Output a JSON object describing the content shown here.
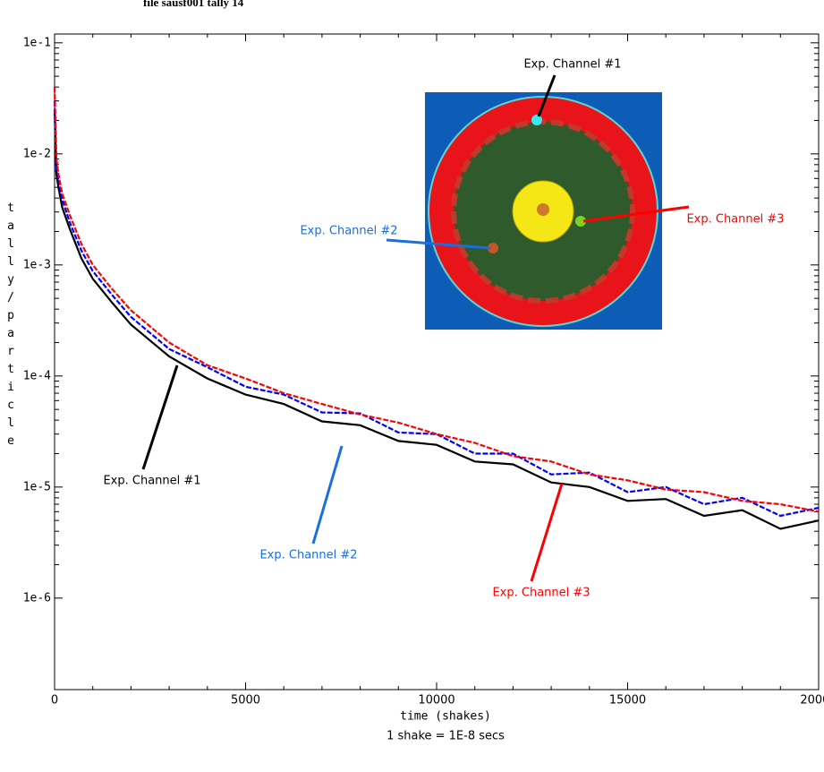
{
  "chart_data": {
    "type": "line",
    "title": "file sausf001 tally 14",
    "xlabel": "time (shakes)",
    "xlabel_note": "1 shake = 1E-8 secs",
    "ylabel": "tally/particle",
    "log_y": true,
    "xlim": [
      0,
      20000
    ],
    "ylim": [
      1.5e-07,
      0.12
    ],
    "xticks": [
      0,
      5000,
      10000,
      15000,
      20000
    ],
    "yticks": [
      {
        "value": 1e-06,
        "label": "1e-6"
      },
      {
        "value": 1e-05,
        "label": "1e-5"
      },
      {
        "value": 0.0001,
        "label": "1e-4"
      },
      {
        "value": 0.001,
        "label": "1e-3"
      },
      {
        "value": 0.01,
        "label": "1e-2"
      },
      {
        "value": 0.1,
        "label": "1e-1"
      }
    ],
    "x": [
      0,
      50,
      100,
      200,
      400,
      700,
      1000,
      1500,
      2000,
      3000,
      4000,
      5000,
      6000,
      7000,
      8000,
      9000,
      10000,
      11000,
      12000,
      13000,
      14000,
      15000,
      16000,
      17000,
      18000,
      19000,
      20000
    ],
    "series": [
      {
        "name": "Exp. Channel #1",
        "color": "#000000",
        "dash": false,
        "values": [
          0.025,
          0.0065,
          0.005,
          0.0033,
          0.0021,
          0.00115,
          0.00075,
          0.00046,
          0.00029,
          0.00015,
          9.5e-05,
          6.8e-05,
          5.6e-05,
          3.9e-05,
          3.6e-05,
          2.6e-05,
          2.4e-05,
          1.7e-05,
          1.6e-05,
          1.1e-05,
          1e-05,
          7.5e-06,
          7.8e-06,
          5.5e-06,
          6.2e-06,
          4.2e-06,
          5e-06
        ]
      },
      {
        "name": "Exp. Channel #2",
        "color": "#0000ff",
        "dash": true,
        "values": [
          0.03,
          0.0075,
          0.0058,
          0.0039,
          0.0024,
          0.00135,
          0.00088,
          0.00054,
          0.00034,
          0.000175,
          0.00012,
          8e-05,
          6.8e-05,
          4.7e-05,
          4.6e-05,
          3.1e-05,
          3e-05,
          2e-05,
          2e-05,
          1.3e-05,
          1.35e-05,
          9e-06,
          1e-05,
          7e-06,
          8e-06,
          5.5e-06,
          6.5e-06
        ]
      },
      {
        "name": "Exp. Channel #3",
        "color": "#ff0000",
        "dash": true,
        "values": [
          0.04,
          0.009,
          0.0066,
          0.0044,
          0.0028,
          0.00155,
          0.001,
          0.00061,
          0.00039,
          0.0002,
          0.000125,
          9.5e-05,
          7e-05,
          5.6e-05,
          4.5e-05,
          3.8e-05,
          3e-05,
          2.5e-05,
          1.9e-05,
          1.7e-05,
          1.3e-05,
          1.15e-05,
          9.5e-06,
          9e-06,
          7.5e-06,
          7e-06,
          6e-06
        ]
      }
    ],
    "annotations": [
      {
        "text": "Exp. Channel #1",
        "color": "#000000"
      },
      {
        "text": "Exp. Channel #2",
        "color": "#1a6ee0"
      },
      {
        "text": "Exp. Channel #3",
        "color": "#ff0000"
      },
      {
        "text": "Exp. Channel #1",
        "color": "#000000"
      },
      {
        "text": "Exp. Channel #2",
        "color": "#1a6ee0"
      },
      {
        "text": "Exp. Channel #3",
        "color": "#ff0000"
      }
    ]
  }
}
